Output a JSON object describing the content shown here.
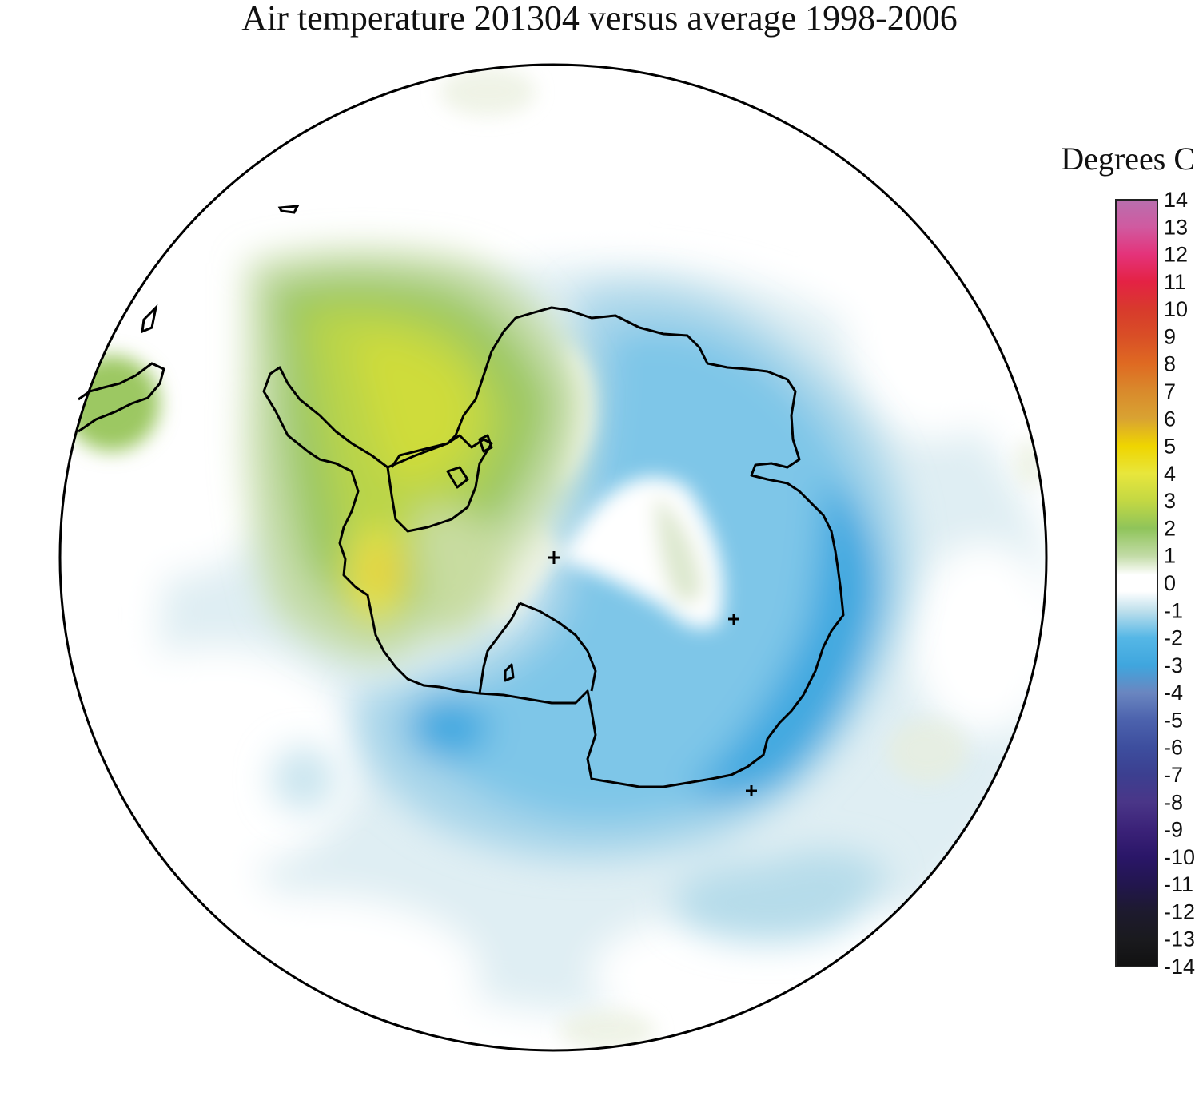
{
  "title": "Air temperature 201304 versus average 1998-2006",
  "colorbar": {
    "units": "Degrees C",
    "min": -14,
    "max": 14,
    "ticks": [
      "14",
      "13",
      "12",
      "11",
      "10",
      "9",
      "8",
      "7",
      "6",
      "5",
      "4",
      "3",
      "2",
      "1",
      "0",
      "-1",
      "-2",
      "-3",
      "-4",
      "-5",
      "-6",
      "-7",
      "-8",
      "-9",
      "-10",
      "-11",
      "-12",
      "-13",
      "-14"
    ],
    "colors": [
      {
        "v": 14,
        "c": "#b86fae"
      },
      {
        "v": 13,
        "c": "#d05aa0"
      },
      {
        "v": 12,
        "c": "#e4337a"
      },
      {
        "v": 11,
        "c": "#e42244"
      },
      {
        "v": 10,
        "c": "#d83a2c"
      },
      {
        "v": 9,
        "c": "#d94f26"
      },
      {
        "v": 8,
        "c": "#df6a22"
      },
      {
        "v": 7,
        "c": "#d98a2c"
      },
      {
        "v": 6,
        "c": "#d9a332"
      },
      {
        "v": 5,
        "c": "#efd500"
      },
      {
        "v": 4,
        "c": "#e8e63c"
      },
      {
        "v": 3,
        "c": "#c3d843"
      },
      {
        "v": 2,
        "c": "#8fc45a"
      },
      {
        "v": 1,
        "c": "#c2dba6"
      },
      {
        "v": 0.3,
        "c": "#ffffff"
      },
      {
        "v": -0.3,
        "c": "#ffffff"
      },
      {
        "v": -1,
        "c": "#bfe0ec"
      },
      {
        "v": -2,
        "c": "#55b7e6"
      },
      {
        "v": -3,
        "c": "#3fa6de"
      },
      {
        "v": -4,
        "c": "#6a86c0"
      },
      {
        "v": -5,
        "c": "#4c62ad"
      },
      {
        "v": -6,
        "c": "#3d4e9e"
      },
      {
        "v": -7,
        "c": "#3c3f90"
      },
      {
        "v": -8,
        "c": "#4a3688"
      },
      {
        "v": -9,
        "c": "#3b2278"
      },
      {
        "v": -10,
        "c": "#2a1668"
      },
      {
        "v": -11,
        "c": "#22164e"
      },
      {
        "v": -12,
        "c": "#1d1a2e"
      },
      {
        "v": -13,
        "c": "#1a1a1e"
      },
      {
        "v": -14,
        "c": "#111111"
      }
    ]
  },
  "map": {
    "projection": "south polar stereographic",
    "region": "Antarctica and Southern Ocean",
    "anomalies": [
      {
        "region": "Antarctic Peninsula / Weddell Sea",
        "value": 3
      },
      {
        "region": "Bellingshausen coast",
        "value": 5
      },
      {
        "region": "East Antarctica coast",
        "value": -2
      },
      {
        "region": "Amundsen / Ross Sea",
        "value": -2.5
      },
      {
        "region": "Ross Ice Shelf",
        "value": 0.5
      },
      {
        "region": "Antarctic interior",
        "value": 0.3
      }
    ]
  }
}
